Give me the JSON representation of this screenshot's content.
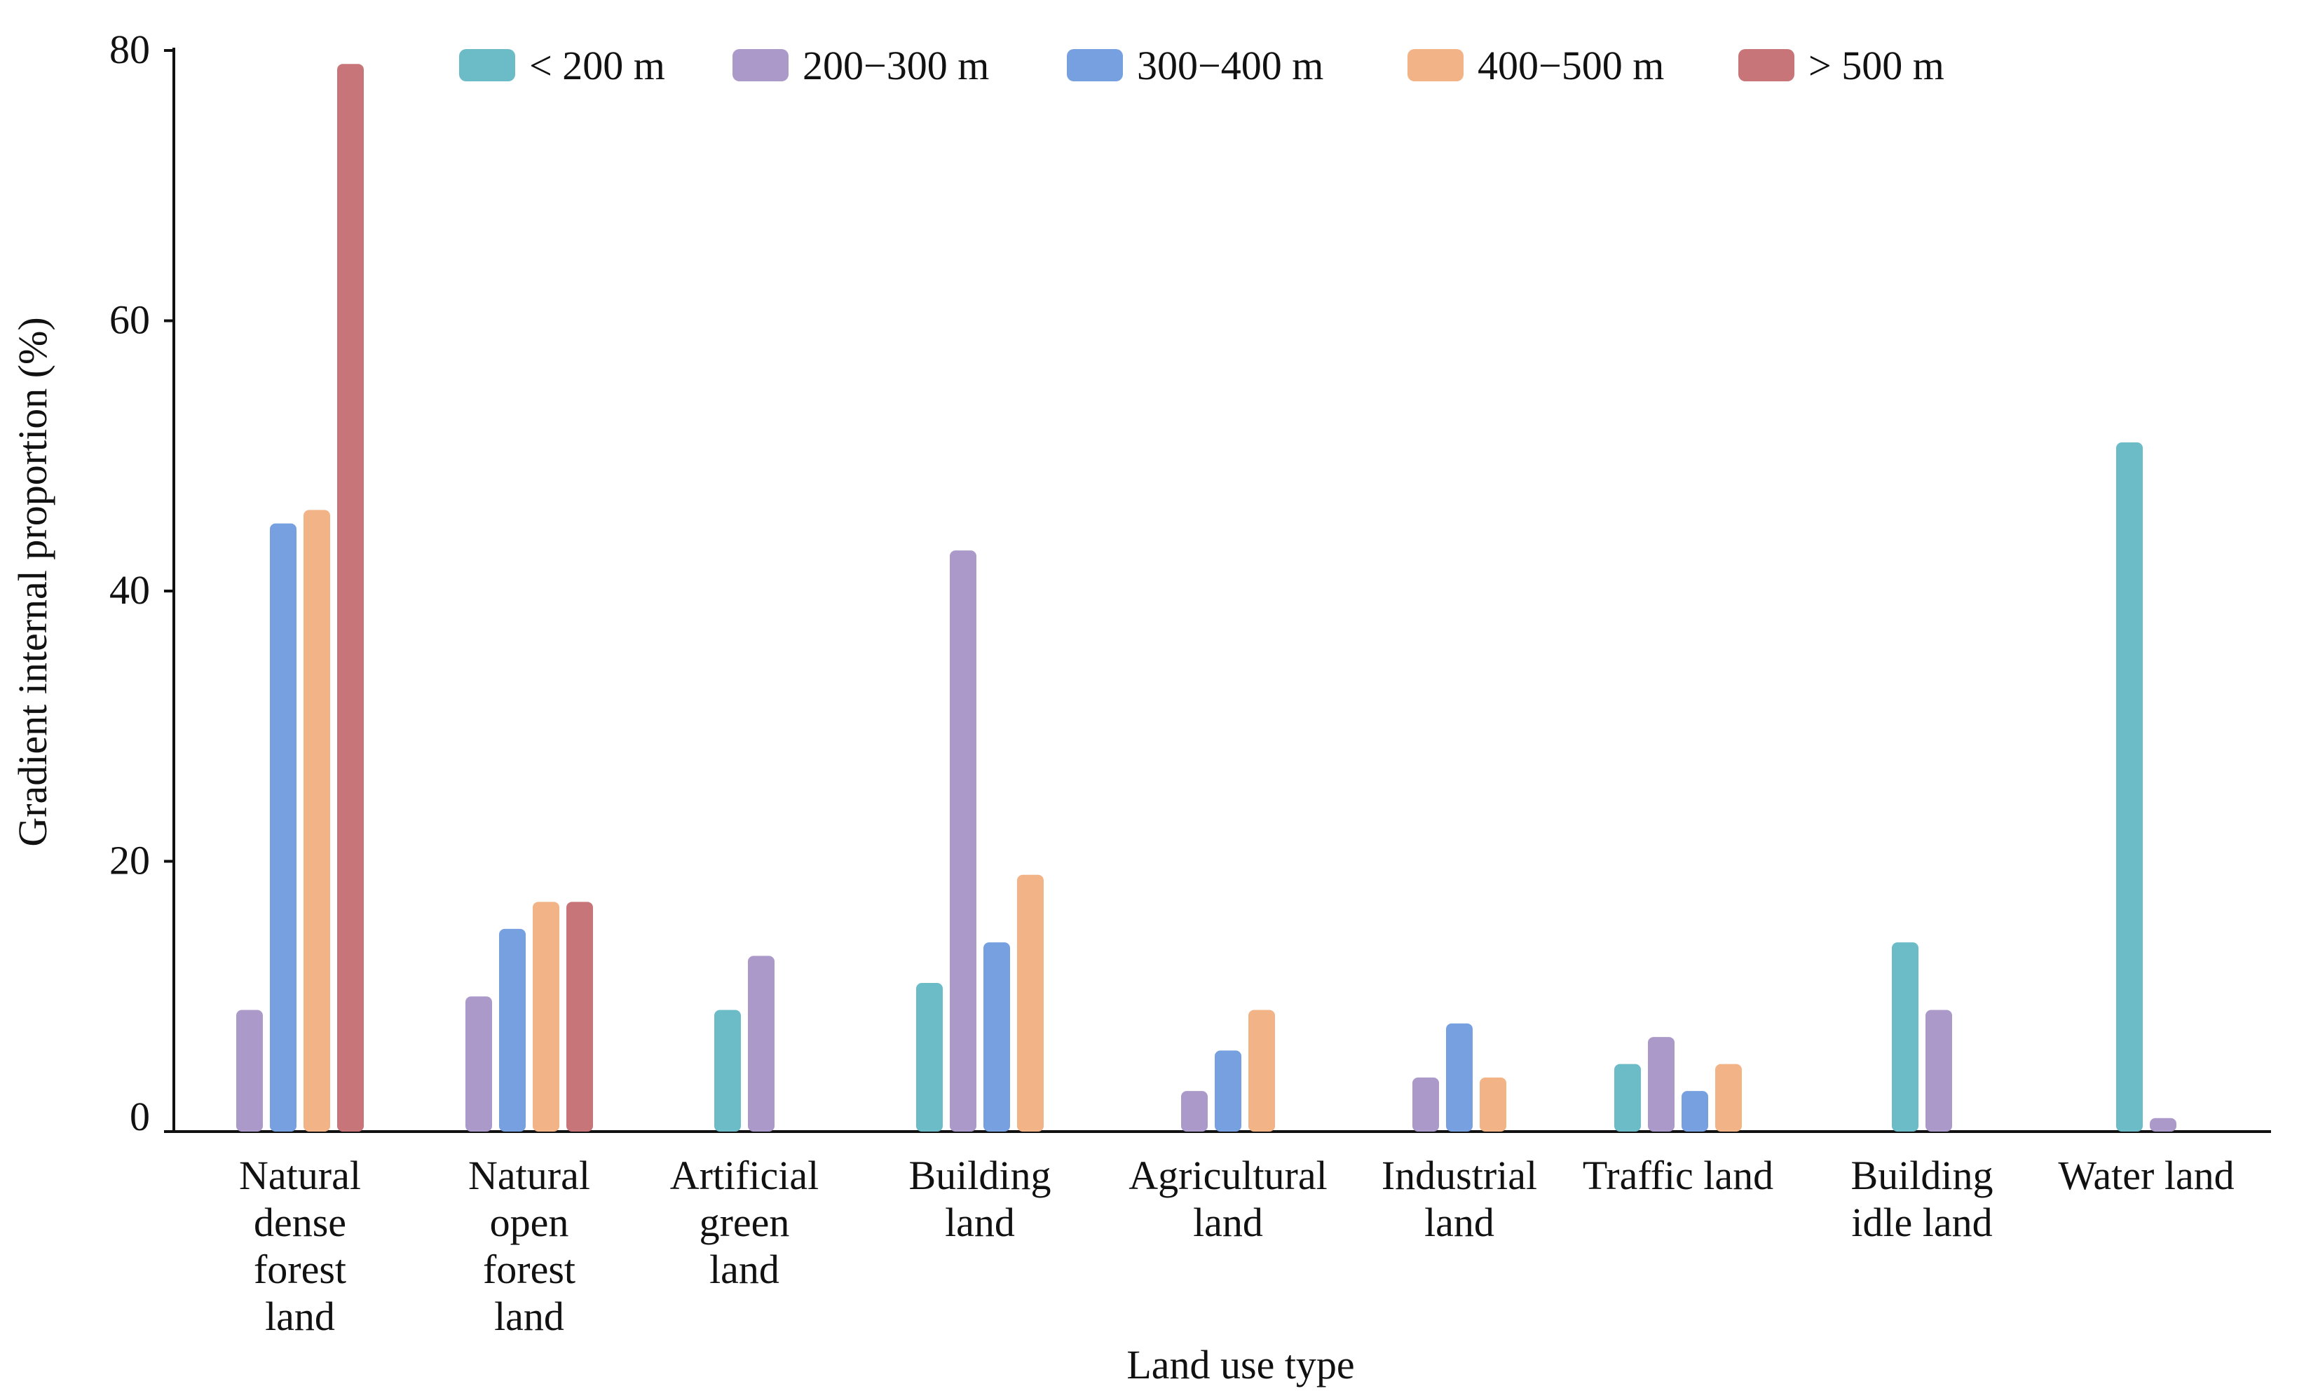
{
  "chart_data": {
    "type": "bar",
    "xlabel": "Land use type",
    "ylabel": "Gradient internal proportion (%)",
    "ylim": [
      0,
      80
    ],
    "yticks": [
      0,
      20,
      40,
      60,
      80
    ],
    "grid": false,
    "legend_position": "top",
    "categories": [
      [
        "Natural",
        "dense",
        "forest",
        "land"
      ],
      [
        "Natural",
        "open",
        "forest",
        "land"
      ],
      [
        "Artificial",
        "green",
        "land"
      ],
      [
        "Building",
        "land"
      ],
      [
        "Agricultural",
        "land"
      ],
      [
        "Industrial",
        "land"
      ],
      [
        "Traffic land"
      ],
      [
        "Building",
        "idle land"
      ],
      [
        "Water land"
      ]
    ],
    "series": [
      {
        "name": "< 200 m",
        "color": "#6cbcc8",
        "values": [
          null,
          null,
          9,
          11,
          null,
          null,
          5,
          14,
          51
        ]
      },
      {
        "name": "200−300 m",
        "color": "#ab99c9",
        "values": [
          9,
          10,
          13,
          43,
          3,
          4,
          7,
          9,
          1
        ]
      },
      {
        "name": "300−400 m",
        "color": "#76a0df",
        "values": [
          45,
          15,
          null,
          14,
          6,
          8,
          3,
          null,
          null
        ]
      },
      {
        "name": "400−500 m",
        "color": "#f2b386",
        "values": [
          46,
          17,
          null,
          19,
          9,
          4,
          5,
          null,
          null
        ]
      },
      {
        "name": "> 500 m",
        "color": "#c8757a",
        "values": [
          79,
          17,
          null,
          null,
          null,
          null,
          null,
          null,
          null
        ]
      }
    ]
  }
}
